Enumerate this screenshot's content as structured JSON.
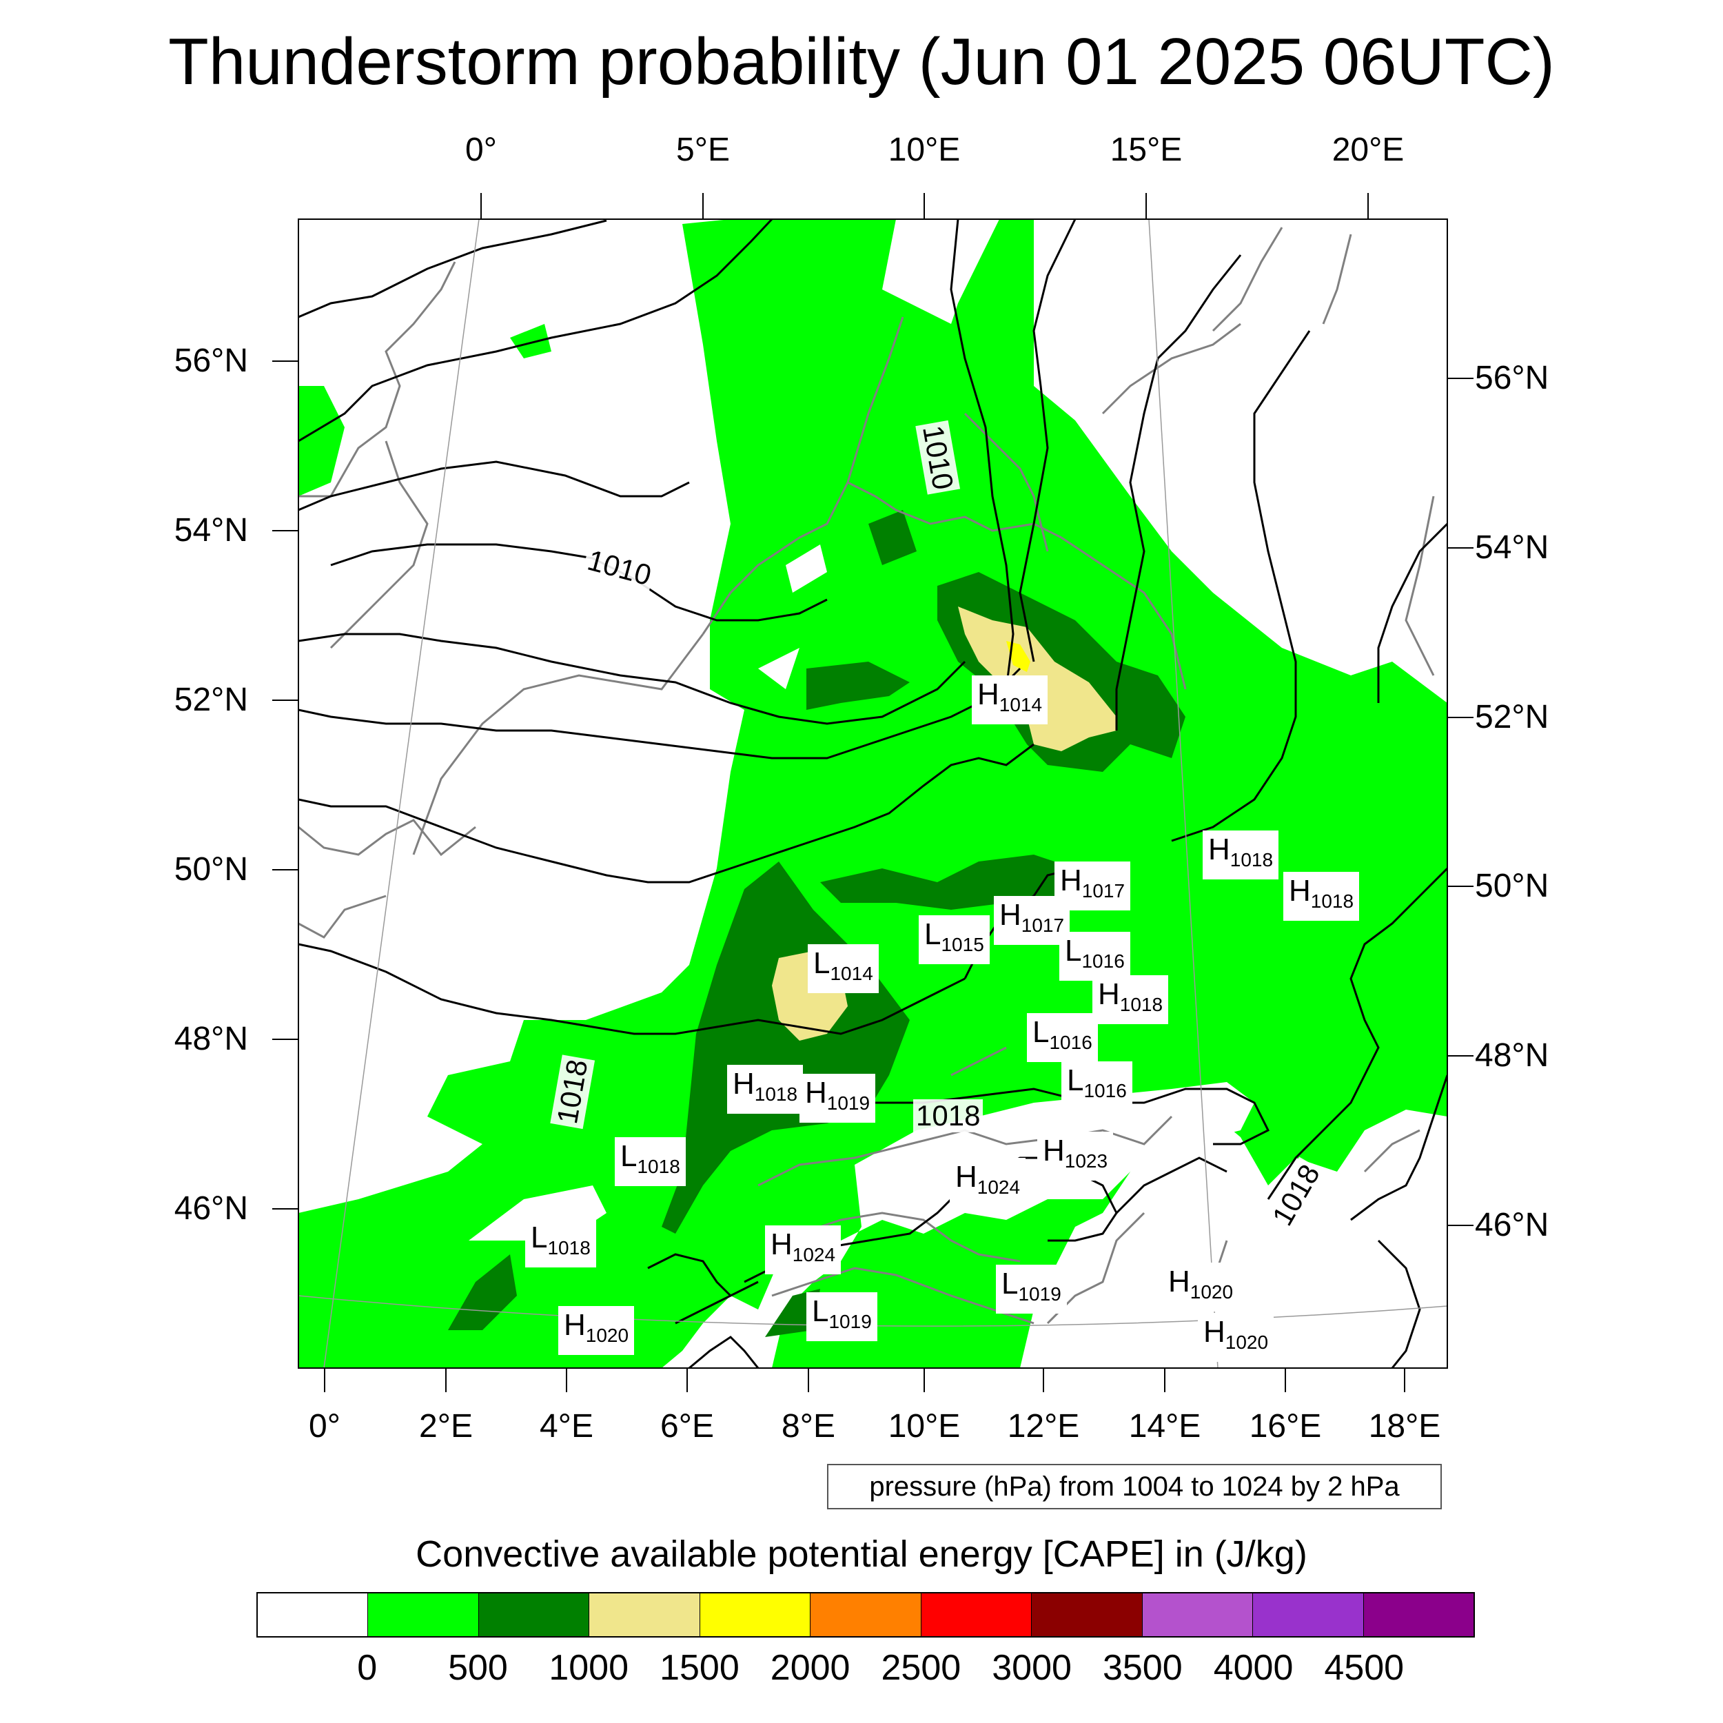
{
  "title": "Thunderstorm probability (Jun 01 2025 06UTC)",
  "axes": {
    "top_lon_ticks": [
      "0°",
      "5°E",
      "10°E",
      "15°E",
      "20°E"
    ],
    "bottom_lon_ticks": [
      "0°",
      "2°E",
      "4°E",
      "6°E",
      "8°E",
      "10°E",
      "12°E",
      "14°E",
      "16°E",
      "18°E"
    ],
    "left_lat_ticks": [
      "56°N",
      "54°N",
      "52°N",
      "50°N",
      "48°N",
      "46°N"
    ],
    "right_lat_ticks": [
      "56°N",
      "54°N",
      "52°N",
      "50°N",
      "48°N",
      "46°N"
    ]
  },
  "contour_info": "pressure (hPa) from 1004 to 1024 by 2 hPa",
  "isobar_labels": [
    "1010",
    "1010",
    "1018",
    "1018",
    "1018"
  ],
  "pressure_centers": [
    {
      "type": "H",
      "value": "1014"
    },
    {
      "type": "H",
      "value": "1018"
    },
    {
      "type": "H",
      "value": "1018"
    },
    {
      "type": "H",
      "value": "1017"
    },
    {
      "type": "H",
      "value": "1017"
    },
    {
      "type": "L",
      "value": "1015"
    },
    {
      "type": "L",
      "value": "1016"
    },
    {
      "type": "L",
      "value": "1014"
    },
    {
      "type": "H",
      "value": "1018"
    },
    {
      "type": "L",
      "value": "1016"
    },
    {
      "type": "L",
      "value": "1016"
    },
    {
      "type": "H",
      "value": "1018"
    },
    {
      "type": "H",
      "value": "1019"
    },
    {
      "type": "L",
      "value": "1018"
    },
    {
      "type": "H",
      "value": "1023"
    },
    {
      "type": "H",
      "value": "1024"
    },
    {
      "type": "L",
      "value": "1018"
    },
    {
      "type": "H",
      "value": "1024"
    },
    {
      "type": "L",
      "value": "1019"
    },
    {
      "type": "H",
      "value": "1020"
    },
    {
      "type": "L",
      "value": "1019"
    },
    {
      "type": "H",
      "value": "1020"
    },
    {
      "type": "H",
      "value": "1020"
    }
  ],
  "colorbar": {
    "title": "Convective available potential energy [CAPE] in (J/kg)",
    "colors": [
      "#ffffff",
      "#00ff00",
      "#008000",
      "#f0e68c",
      "#ffff00",
      "#ff8000",
      "#ff0000",
      "#8b0000",
      "#b452cd",
      "#9932cc",
      "#8b008b"
    ],
    "labels": [
      "0",
      "500",
      "1000",
      "1500",
      "2000",
      "2500",
      "3000",
      "3500",
      "4000",
      "4500"
    ]
  }
}
